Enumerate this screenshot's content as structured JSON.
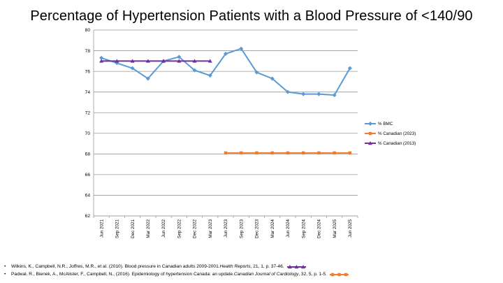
{
  "title": "Percentage of Hypertension Patients with a Blood Pressure of <140/90",
  "colors": {
    "bmc": "#5b9bd5",
    "canadian_2023": "#ed7d31",
    "canadian_2013": "#7030a0",
    "grid": "#9a9a9a"
  },
  "chart_data": {
    "type": "line",
    "title": "Percentage of Hypertension Patients with a Blood Pressure of <140/90",
    "xlabel": "",
    "ylabel": "",
    "ylim": [
      62,
      80
    ],
    "yticks": [
      62,
      64,
      66,
      68,
      70,
      72,
      74,
      76,
      78,
      80
    ],
    "grid": true,
    "legend_position": "right",
    "categories": [
      "Jun 2021",
      "Sep 2021",
      "Dec 2021",
      "Mar 2022",
      "Jun 2022",
      "Sep 2022",
      "Dec 2022",
      "Mar 2023",
      "Jun 2023",
      "Sep 2023",
      "Dec 2023",
      "Mar 2024",
      "Jun 2024",
      "Sep 2024",
      "Dec 2024",
      "Mar 2025",
      "Jun 2025"
    ],
    "series": [
      {
        "name": "% BMC",
        "color": "#5b9bd5",
        "marker": "diamond",
        "values": [
          77.3,
          76.8,
          76.3,
          75.3,
          77.0,
          77.4,
          76.1,
          75.6,
          77.7,
          78.2,
          75.9,
          75.3,
          74.0,
          73.8,
          73.8,
          73.7,
          76.3
        ]
      },
      {
        "name": "% Canadian (2023)",
        "color": "#ed7d31",
        "marker": "square",
        "values": [
          null,
          null,
          null,
          null,
          null,
          null,
          null,
          null,
          68.1,
          68.1,
          68.1,
          68.1,
          68.1,
          68.1,
          68.1,
          68.1,
          68.1
        ]
      },
      {
        "name": "% Canadian (2013)",
        "color": "#7030a0",
        "marker": "triangle",
        "values": [
          77.0,
          77.0,
          77.0,
          77.0,
          77.0,
          77.0,
          77.0,
          77.0,
          null,
          null,
          null,
          null,
          null,
          null,
          null,
          null,
          null
        ]
      }
    ]
  },
  "references": [
    {
      "prefix": "Wilkins, K., Campbell, N.R., Joffres, M.R., et al. (2010). Blood pressure in Canadian adults 2009-2001. ",
      "journal": "Health Reports",
      "suffix": ", 21, 1, p. 37-46.",
      "marker_color": "#7030a0",
      "marker": "triangle"
    },
    {
      "prefix": "Padwal, R., Bienek, A., McAlister, F., Campbell, N., (2016). Epidemiology of hypertension Canada: an update. ",
      "journal": "Canadian Journal of Cardiology",
      "suffix": ", 32, 5, p. 1-5.",
      "marker_color": "#ed7d31",
      "marker": "square"
    }
  ]
}
